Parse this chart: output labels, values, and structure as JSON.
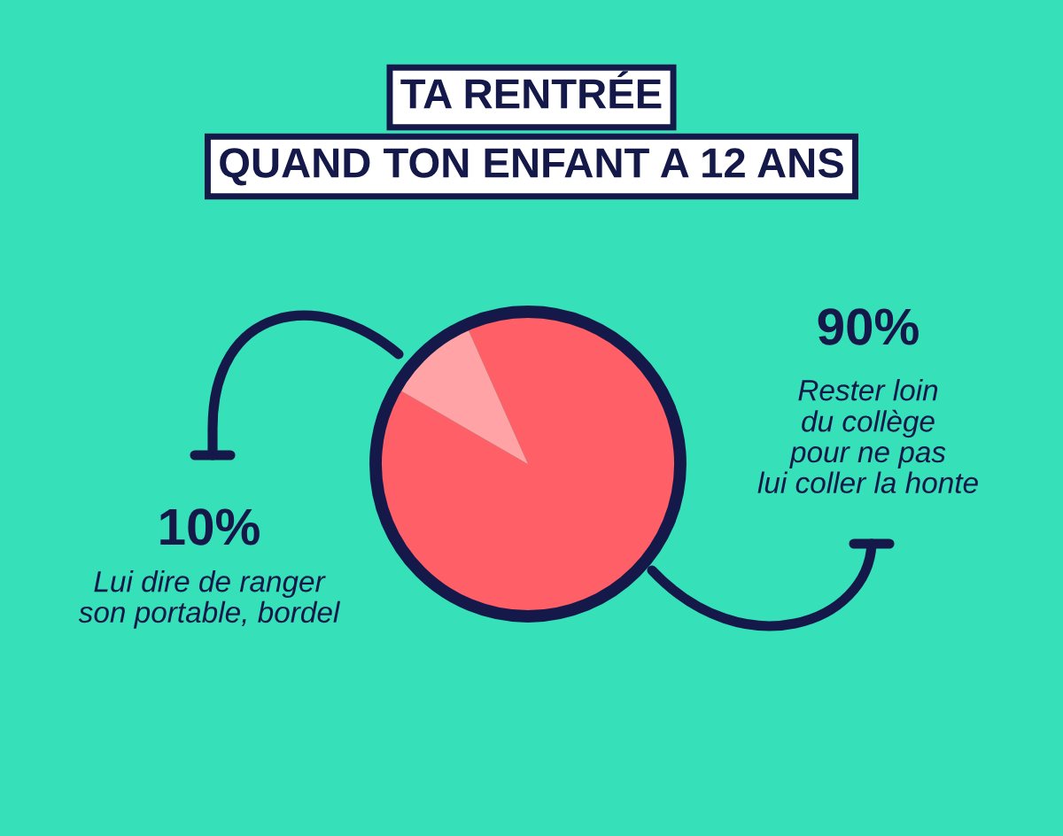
{
  "chart_data": {
    "type": "pie",
    "title": "TA RENTRÉE\nQUAND TON ENFANT A 12 ANS",
    "categories": [
      "Lui dire de ranger\nson portable, bordel",
      "Rester loin\ndu collège\npour ne pas\nlui coller la honte"
    ],
    "values": [
      10,
      90
    ],
    "colors": [
      "#ffa3a6",
      "#ff5f66"
    ],
    "value_labels": [
      "10%",
      "90%"
    ]
  }
}
